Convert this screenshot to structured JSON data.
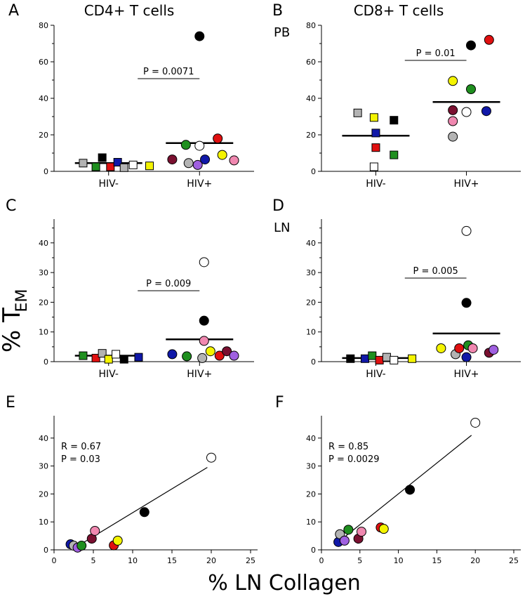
{
  "colors": {
    "gray": "#b3b3b3",
    "black": "#000000",
    "green": "#1f8f1f",
    "red": "#e01010",
    "blue": "#1018a8",
    "yellow": "#f4f400",
    "white": "#ffffff",
    "maroon": "#7a1030",
    "pink": "#f088b0",
    "purple": "#a060e0"
  },
  "labels": {
    "col_a_title": "CD4+ T cells",
    "col_b_title": "CD8+ T cells",
    "pb": "PB",
    "ln": "LN",
    "y_axis_main": "% T",
    "y_axis_sub": "EM",
    "x_axis_main": "% LN Collagen"
  },
  "chart_data": [
    {
      "id": "A",
      "letter": "A",
      "type": "scatter",
      "ylim": [
        0,
        80
      ],
      "yticks": [
        "0",
        "20",
        "40",
        "60",
        "80"
      ],
      "categories": [
        "HIV-",
        "HIV+"
      ],
      "pvalue": "P = 0.0071",
      "means": [
        4.5,
        15.5
      ],
      "series": [
        {
          "name": "HIV-",
          "shape": "square",
          "points": [
            {
              "x": 0.72,
              "y": 4.5,
              "c": "gray"
            },
            {
              "x": 0.86,
              "y": 2.5,
              "c": "green"
            },
            {
              "x": 0.93,
              "y": 7.5,
              "c": "black"
            },
            {
              "x": 1.02,
              "y": 2.5,
              "c": "red"
            },
            {
              "x": 1.1,
              "y": 5.0,
              "c": "blue"
            },
            {
              "x": 1.17,
              "y": 2.0,
              "c": "gray"
            },
            {
              "x": 1.27,
              "y": 3.5,
              "c": "white"
            },
            {
              "x": 1.45,
              "y": 3.0,
              "c": "yellow"
            }
          ]
        },
        {
          "name": "HIV+",
          "shape": "circle",
          "points": [
            {
              "x": 2.0,
              "y": 74,
              "c": "black"
            },
            {
              "x": 1.7,
              "y": 6.5,
              "c": "maroon"
            },
            {
              "x": 1.85,
              "y": 14.5,
              "c": "green"
            },
            {
              "x": 1.88,
              "y": 4.5,
              "c": "gray"
            },
            {
              "x": 1.98,
              "y": 3.5,
              "c": "purple"
            },
            {
              "x": 2.0,
              "y": 14.0,
              "c": "white"
            },
            {
              "x": 2.06,
              "y": 6.5,
              "c": "blue"
            },
            {
              "x": 2.2,
              "y": 18.0,
              "c": "red"
            },
            {
              "x": 2.25,
              "y": 9.0,
              "c": "yellow"
            },
            {
              "x": 2.38,
              "y": 6.0,
              "c": "pink"
            }
          ]
        }
      ]
    },
    {
      "id": "B",
      "letter": "B",
      "type": "scatter",
      "ylim": [
        0,
        80
      ],
      "yticks": [
        "0",
        "20",
        "40",
        "60",
        "80"
      ],
      "categories": [
        "HIV-",
        "HIV+"
      ],
      "pvalue": "P = 0.01",
      "means": [
        19.5,
        38
      ],
      "series": [
        {
          "name": "HIV-",
          "shape": "square",
          "points": [
            {
              "x": 0.8,
              "y": 32,
              "c": "gray"
            },
            {
              "x": 0.98,
              "y": 29.5,
              "c": "yellow"
            },
            {
              "x": 1.2,
              "y": 28,
              "c": "black"
            },
            {
              "x": 1.0,
              "y": 21,
              "c": "blue"
            },
            {
              "x": 1.0,
              "y": 13,
              "c": "red"
            },
            {
              "x": 1.2,
              "y": 9,
              "c": "green"
            },
            {
              "x": 0.98,
              "y": 2.5,
              "c": "white"
            }
          ]
        },
        {
          "name": "HIV+",
          "shape": "circle",
          "points": [
            {
              "x": 2.05,
              "y": 69,
              "c": "black"
            },
            {
              "x": 2.25,
              "y": 72,
              "c": "red"
            },
            {
              "x": 1.85,
              "y": 49.5,
              "c": "yellow"
            },
            {
              "x": 2.05,
              "y": 45,
              "c": "green"
            },
            {
              "x": 1.85,
              "y": 33.5,
              "c": "maroon"
            },
            {
              "x": 2.0,
              "y": 32.5,
              "c": "white"
            },
            {
              "x": 2.22,
              "y": 33,
              "c": "blue"
            },
            {
              "x": 1.85,
              "y": 27.5,
              "c": "pink"
            },
            {
              "x": 1.85,
              "y": 19,
              "c": "gray"
            }
          ]
        }
      ]
    },
    {
      "id": "C",
      "letter": "C",
      "type": "scatter",
      "ylim": [
        0,
        48
      ],
      "yticks": [
        "0",
        "10",
        "20",
        "30",
        "40"
      ],
      "categories": [
        "HIV-",
        "HIV+"
      ],
      "pvalue": "P = 0.009",
      "means": [
        2.0,
        7.5
      ],
      "series": [
        {
          "name": "HIV-",
          "shape": "square",
          "points": [
            {
              "x": 0.72,
              "y": 2.0,
              "c": "green"
            },
            {
              "x": 0.86,
              "y": 1.2,
              "c": "red"
            },
            {
              "x": 0.93,
              "y": 2.8,
              "c": "gray"
            },
            {
              "x": 1.0,
              "y": 0.8,
              "c": "yellow"
            },
            {
              "x": 1.08,
              "y": 2.5,
              "c": "white"
            },
            {
              "x": 1.17,
              "y": 0.8,
              "c": "black"
            },
            {
              "x": 1.33,
              "y": 1.5,
              "c": "blue"
            }
          ]
        },
        {
          "name": "HIV+",
          "shape": "circle",
          "points": [
            {
              "x": 2.05,
              "y": 33.5,
              "c": "white"
            },
            {
              "x": 2.05,
              "y": 13.8,
              "c": "black"
            },
            {
              "x": 2.05,
              "y": 7.0,
              "c": "pink"
            },
            {
              "x": 1.7,
              "y": 2.5,
              "c": "blue"
            },
            {
              "x": 1.86,
              "y": 1.8,
              "c": "green"
            },
            {
              "x": 2.03,
              "y": 1.2,
              "c": "gray"
            },
            {
              "x": 2.12,
              "y": 3.5,
              "c": "yellow"
            },
            {
              "x": 2.22,
              "y": 2.0,
              "c": "red"
            },
            {
              "x": 2.3,
              "y": 3.5,
              "c": "maroon"
            },
            {
              "x": 2.38,
              "y": 2.0,
              "c": "purple"
            }
          ]
        }
      ]
    },
    {
      "id": "D",
      "letter": "D",
      "type": "scatter",
      "ylim": [
        0,
        48
      ],
      "yticks": [
        "0",
        "10",
        "20",
        "30",
        "40"
      ],
      "categories": [
        "HIV-",
        "HIV+"
      ],
      "pvalue": "P = 0.005",
      "means": [
        1.2,
        9.5
      ],
      "series": [
        {
          "name": "HIV-",
          "shape": "square",
          "points": [
            {
              "x": 0.72,
              "y": 1.0,
              "c": "black"
            },
            {
              "x": 0.88,
              "y": 1.0,
              "c": "blue"
            },
            {
              "x": 0.96,
              "y": 2.0,
              "c": "green"
            },
            {
              "x": 1.04,
              "y": 0.5,
              "c": "red"
            },
            {
              "x": 1.12,
              "y": 1.5,
              "c": "gray"
            },
            {
              "x": 1.2,
              "y": 0.5,
              "c": "white"
            },
            {
              "x": 1.4,
              "y": 1.0,
              "c": "yellow"
            }
          ]
        },
        {
          "name": "HIV+",
          "shape": "circle",
          "points": [
            {
              "x": 2.0,
              "y": 44,
              "c": "white"
            },
            {
              "x": 2.0,
              "y": 19.8,
              "c": "black"
            },
            {
              "x": 1.72,
              "y": 4.5,
              "c": "yellow"
            },
            {
              "x": 1.88,
              "y": 2.5,
              "c": "gray"
            },
            {
              "x": 1.92,
              "y": 4.5,
              "c": "red"
            },
            {
              "x": 2.0,
              "y": 1.5,
              "c": "blue"
            },
            {
              "x": 2.02,
              "y": 5.5,
              "c": "green"
            },
            {
              "x": 2.07,
              "y": 4.5,
              "c": "pink"
            },
            {
              "x": 2.25,
              "y": 3.0,
              "c": "maroon"
            },
            {
              "x": 2.3,
              "y": 4.0,
              "c": "purple"
            }
          ]
        }
      ]
    },
    {
      "id": "E",
      "letter": "E",
      "type": "scatter",
      "xlim": [
        0,
        25
      ],
      "ylim": [
        0,
        48
      ],
      "xticks": [
        "0",
        "5",
        "10",
        "15",
        "20",
        "25"
      ],
      "yticks": [
        "0",
        "10",
        "20",
        "30",
        "40"
      ],
      "stat_r": "R = 0.67",
      "stat_p": "P = 0.03",
      "fit": {
        "x1": 2.5,
        "y1": 0.5,
        "x2": 19.5,
        "y2": 29.5
      },
      "points": [
        {
          "x": 2.1,
          "y": 2.0,
          "c": "blue"
        },
        {
          "x": 2.5,
          "y": 1.5,
          "c": "gray"
        },
        {
          "x": 3.0,
          "y": 0.8,
          "c": "purple"
        },
        {
          "x": 3.5,
          "y": 1.5,
          "c": "green"
        },
        {
          "x": 4.8,
          "y": 4.0,
          "c": "maroon"
        },
        {
          "x": 5.2,
          "y": 6.8,
          "c": "pink"
        },
        {
          "x": 7.6,
          "y": 1.6,
          "c": "red"
        },
        {
          "x": 8.1,
          "y": 3.3,
          "c": "yellow"
        },
        {
          "x": 11.5,
          "y": 13.5,
          "c": "black"
        },
        {
          "x": 20.0,
          "y": 33.0,
          "c": "white"
        }
      ]
    },
    {
      "id": "F",
      "letter": "F",
      "type": "scatter",
      "xlim": [
        0,
        25
      ],
      "ylim": [
        0,
        48
      ],
      "xticks": [
        "0",
        "5",
        "10",
        "15",
        "20",
        "25"
      ],
      "yticks": [
        "0",
        "10",
        "20",
        "30",
        "40"
      ],
      "stat_r": "R = 0.85",
      "stat_p": "P = 0.0029",
      "fit": {
        "x1": 2.5,
        "y1": 3.5,
        "x2": 19.5,
        "y2": 41
      },
      "points": [
        {
          "x": 2.2,
          "y": 2.8,
          "c": "blue"
        },
        {
          "x": 2.4,
          "y": 5.6,
          "c": "gray"
        },
        {
          "x": 3.0,
          "y": 3.3,
          "c": "purple"
        },
        {
          "x": 3.5,
          "y": 7.2,
          "c": "green"
        },
        {
          "x": 4.8,
          "y": 4.0,
          "c": "maroon"
        },
        {
          "x": 5.2,
          "y": 6.5,
          "c": "pink"
        },
        {
          "x": 7.7,
          "y": 8.0,
          "c": "red"
        },
        {
          "x": 8.1,
          "y": 7.5,
          "c": "yellow"
        },
        {
          "x": 11.5,
          "y": 21.5,
          "c": "black"
        },
        {
          "x": 20.0,
          "y": 45.5,
          "c": "white"
        }
      ]
    }
  ]
}
